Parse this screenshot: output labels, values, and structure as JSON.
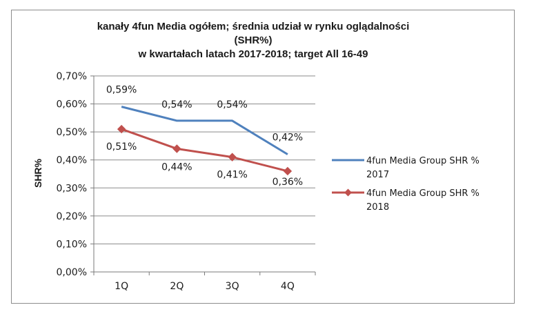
{
  "chart_data": {
    "type": "line",
    "title_lines": [
      "kanały 4fun Media ogółem; średnia udział w rynku oglądalności",
      "(SHR%)",
      "w kwartałach latach 2017-2018; target All 16-49"
    ],
    "xlabel": "",
    "ylabel": "SHR%",
    "categories": [
      "1Q",
      "2Q",
      "3Q",
      "4Q"
    ],
    "ylim": [
      0,
      0.7
    ],
    "yticks": [
      0,
      0.1,
      0.2,
      0.3,
      0.4,
      0.5,
      0.6,
      0.7
    ],
    "ytick_labels": [
      "0,00%",
      "0,10%",
      "0,20%",
      "0,30%",
      "0,40%",
      "0,50%",
      "0,60%",
      "0,70%"
    ],
    "grid": true,
    "legend_position": "right",
    "series": [
      {
        "name": "4fun Media Group SHR % 2017",
        "legend_lines": [
          "4fun Media Group SHR %",
          "2017"
        ],
        "values": [
          0.59,
          0.54,
          0.54,
          0.42
        ],
        "labels": [
          "0,59%",
          "0,54%",
          "0,54%",
          "0,42%"
        ],
        "color": "#4f81bd",
        "marker": "none"
      },
      {
        "name": "4fun Media Group SHR % 2018",
        "legend_lines": [
          "4fun Media Group SHR %",
          "2018"
        ],
        "values": [
          0.51,
          0.44,
          0.41,
          0.36
        ],
        "labels": [
          "0,51%",
          "0,44%",
          "0,41%",
          "0,36%"
        ],
        "color": "#c0504d",
        "marker": "diamond"
      }
    ]
  }
}
